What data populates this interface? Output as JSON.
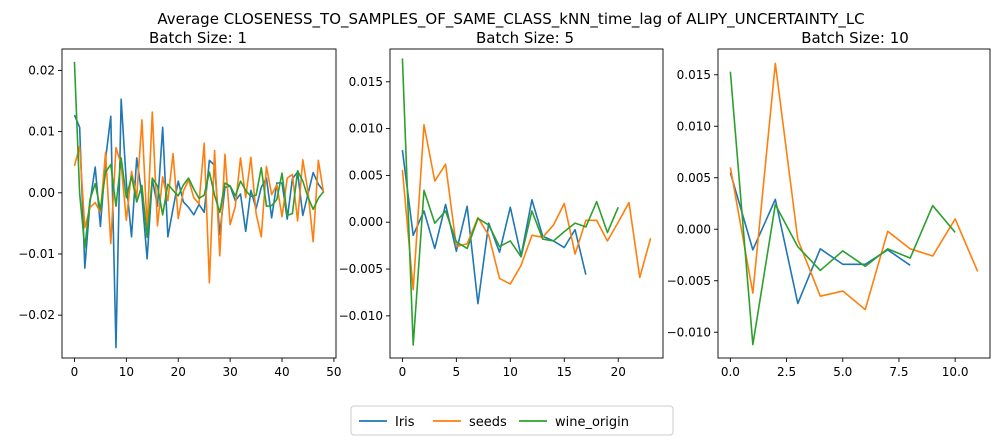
{
  "figure_title": "Average CLOSENESS_TO_SAMPLES_OF_SAME_CLASS_kNN_time_lag of ALIPY_UNCERTAINTY_LC",
  "legend": [
    {
      "name": "Iris",
      "color": "#1f77b4"
    },
    {
      "name": "seeds",
      "color": "#ff7f0e"
    },
    {
      "name": "wine_origin",
      "color": "#2ca02c"
    }
  ],
  "chart_data": [
    {
      "type": "line",
      "title": "Batch Size: 1",
      "xlabel": "",
      "ylabel": "",
      "xlim": [
        -2.4,
        50.4
      ],
      "ylim": [
        -0.027,
        0.0235
      ],
      "xticks": [
        0,
        10,
        20,
        30,
        40,
        50
      ],
      "xtick_labels": [
        "0",
        "10",
        "20",
        "30",
        "40",
        "50"
      ],
      "yticks": [
        -0.02,
        -0.01,
        0.0,
        0.01,
        0.02
      ],
      "ytick_labels": [
        "−0.02",
        "−0.01",
        "0.00",
        "0.01",
        "0.02"
      ],
      "series": [
        {
          "name": "Iris",
          "x": [
            0,
            1,
            2,
            3,
            4,
            5,
            6,
            7,
            8,
            9,
            10,
            11,
            12,
            13,
            14,
            15,
            16,
            17,
            18,
            19,
            20,
            21,
            22,
            23,
            24,
            25,
            26,
            27,
            28,
            29,
            30,
            31,
            32,
            33,
            34,
            35,
            36,
            37,
            38,
            39,
            40,
            41,
            42,
            43,
            44,
            45,
            46,
            47,
            48
          ],
          "y": [
            0.0127,
            0.0107,
            -0.0123,
            -0.0015,
            0.0042,
            -0.0055,
            0.0055,
            0.0125,
            -0.0253,
            0.0153,
            0.0016,
            -0.0072,
            0.0057,
            -0.0005,
            -0.0108,
            0.0022,
            -0.0022,
            0.0107,
            -0.0072,
            -0.0026,
            0.0019,
            -0.0015,
            -0.0024,
            -0.0036,
            -0.0019,
            -0.0032,
            0.0053,
            0.0045,
            -0.0068,
            0.0009,
            0.0011,
            -0.0013,
            -0.0002,
            -0.0063,
            0.0004,
            -0.0026,
            0.0009,
            0.0024,
            -0.0041,
            0.0016,
            0.0016,
            -0.0043,
            0.0023,
            0.0034,
            -0.0037,
            -0.0002,
            0.0033,
            0.0014,
            0.0003
          ]
        },
        {
          "name": "seeds",
          "x": [
            0,
            1,
            2,
            3,
            4,
            5,
            6,
            7,
            8,
            9,
            10,
            11,
            12,
            13,
            14,
            15,
            16,
            17,
            18,
            19,
            20,
            21,
            22,
            23,
            24,
            25,
            26,
            27,
            28,
            29,
            30,
            31,
            32,
            33,
            34,
            35,
            36,
            37,
            38,
            39,
            40,
            41,
            42,
            43,
            44,
            45,
            46,
            47,
            48
          ],
          "y": [
            0.0044,
            0.0076,
            -0.0057,
            -0.0024,
            -0.0016,
            -0.0032,
            0.0066,
            -0.0083,
            0.0074,
            0.0046,
            -0.0045,
            0.0035,
            -0.0007,
            0.0119,
            -0.0058,
            0.0132,
            -0.0054,
            0.0026,
            -0.0013,
            0.0064,
            -0.0042,
            0.0003,
            0.0021,
            -0.0008,
            -0.0018,
            0.0081,
            -0.0147,
            0.0069,
            -0.0103,
            0.0063,
            -0.0052,
            -0.0022,
            0.0057,
            -0.0008,
            0.0058,
            -0.0034,
            -0.0072,
            0.0043,
            -0.0003,
            0.0013,
            -0.0039,
            0.0024,
            0.003,
            -0.0046,
            0.0054,
            0.0002,
            -0.008,
            0.0053,
            0.0
          ]
        },
        {
          "name": "wine_origin",
          "x": [
            0,
            1,
            2,
            3,
            4,
            5,
            6,
            7,
            8,
            9,
            10,
            11,
            12,
            13,
            14,
            15,
            16,
            17,
            18,
            19,
            20,
            21,
            22,
            23,
            24,
            25,
            26,
            27,
            28,
            29,
            30,
            31,
            32,
            33,
            34,
            35,
            36,
            37,
            38,
            39,
            40,
            41,
            42,
            43,
            44,
            45,
            46,
            47,
            48
          ],
          "y": [
            0.0214,
            -0.0001,
            -0.009,
            -0.0011,
            0.0015,
            -0.0028,
            0.0034,
            0.0046,
            -0.0022,
            0.0057,
            -0.0008,
            0.0027,
            -0.0015,
            0.0012,
            -0.0073,
            0.0024,
            0.0011,
            -0.0036,
            0.0014,
            0.0004,
            -0.0005,
            0.0013,
            0.0024,
            0.0006,
            -0.0009,
            -0.0004,
            0.0034,
            -0.0004,
            -0.0032,
            0.0016,
            0.0011,
            -0.0005,
            0.0019,
            0.0004,
            -0.0006,
            -0.0004,
            0.0041,
            -0.0022,
            -0.0021,
            -0.0011,
            0.0032,
            -0.0037,
            -0.0034,
            0.0036,
            0.0019,
            -0.0007,
            -0.0027,
            -0.0009,
            0.0002
          ]
        }
      ]
    },
    {
      "type": "line",
      "title": "Batch Size: 5",
      "xlabel": "",
      "ylabel": "",
      "xlim": [
        -1.15,
        24.15
      ],
      "ylim": [
        -0.0145,
        0.0185
      ],
      "xticks": [
        0,
        5,
        10,
        15,
        20
      ],
      "xtick_labels": [
        "0",
        "5",
        "10",
        "15",
        "20"
      ],
      "yticks": [
        -0.01,
        -0.005,
        0.0,
        0.005,
        0.01,
        0.015
      ],
      "ytick_labels": [
        "−0.010",
        "−0.005",
        "0.000",
        "0.005",
        "0.010",
        "0.015"
      ],
      "series": [
        {
          "name": "Iris",
          "x": [
            0,
            1,
            2,
            3,
            4,
            5,
            6,
            7,
            8,
            9,
            10,
            11,
            12,
            13,
            14,
            15,
            16,
            17
          ],
          "y": [
            0.0077,
            -0.0014,
            0.0012,
            -0.0028,
            0.0019,
            -0.0031,
            0.0017,
            -0.0087,
            -0.0001,
            -0.0032,
            0.0016,
            -0.0036,
            0.0024,
            -0.0015,
            -0.002,
            -0.0027,
            -0.0008,
            -0.0056
          ]
        },
        {
          "name": "seeds",
          "x": [
            0,
            1,
            2,
            3,
            4,
            5,
            6,
            7,
            8,
            9,
            10,
            11,
            12,
            13,
            14,
            15,
            16,
            17,
            18,
            19,
            20,
            21,
            22,
            23
          ],
          "y": [
            0.0056,
            -0.0072,
            0.0104,
            0.0044,
            0.0062,
            -0.0026,
            -0.0023,
            0.0005,
            -0.0014,
            -0.006,
            -0.0066,
            -0.0046,
            -0.0014,
            -0.0016,
            -0.0003,
            0.002,
            -0.0034,
            0.0002,
            0.0002,
            -0.002,
            0.0,
            0.0021,
            -0.0059,
            -0.0017
          ]
        },
        {
          "name": "wine_origin",
          "x": [
            0,
            1,
            2,
            3,
            4,
            5,
            6,
            7,
            8,
            9,
            10,
            11,
            12,
            13,
            14,
            15,
            16,
            17,
            18,
            19,
            20
          ],
          "y": [
            0.0175,
            -0.0131,
            0.0034,
            -0.0001,
            0.0012,
            -0.0021,
            -0.0028,
            0.0004,
            -0.0003,
            -0.0026,
            -0.002,
            -0.0037,
            0.0012,
            -0.0018,
            -0.002,
            -0.001,
            -0.0001,
            -0.0005,
            0.0022,
            -0.0011,
            0.0016
          ]
        }
      ]
    },
    {
      "type": "line",
      "title": "Batch Size: 10",
      "xlabel": "",
      "ylabel": "",
      "xlim": [
        -0.55,
        11.55
      ],
      "ylim": [
        -0.0125,
        0.0175
      ],
      "xticks": [
        0,
        2.5,
        5,
        7.5,
        10
      ],
      "xtick_labels": [
        "0.0",
        "2.5",
        "5.0",
        "7.5",
        "10.0"
      ],
      "yticks": [
        -0.01,
        -0.005,
        0.0,
        0.005,
        0.01,
        0.015
      ],
      "ytick_labels": [
        "−0.010",
        "−0.005",
        "0.000",
        "0.005",
        "0.010",
        "0.015"
      ],
      "series": [
        {
          "name": "Iris",
          "x": [
            0,
            1,
            2,
            3,
            4,
            5,
            6,
            7,
            8
          ],
          "y": [
            0.0055,
            -0.002,
            0.0029,
            -0.0072,
            -0.0019,
            -0.0034,
            -0.0034,
            -0.002,
            -0.0035
          ]
        },
        {
          "name": "seeds",
          "x": [
            0,
            1,
            2,
            3,
            4,
            5,
            6,
            7,
            8,
            9,
            10,
            11
          ],
          "y": [
            0.006,
            -0.0062,
            0.0161,
            -0.001,
            -0.0065,
            -0.006,
            -0.0078,
            -0.0002,
            -0.0019,
            -0.0026,
            0.001,
            -0.0041
          ]
        },
        {
          "name": "wine_origin",
          "x": [
            0,
            1,
            2,
            3,
            4,
            5,
            6,
            7,
            8,
            9,
            10
          ],
          "y": [
            0.0153,
            -0.0112,
            0.0024,
            -0.0017,
            -0.004,
            -0.0021,
            -0.0036,
            -0.0019,
            -0.0028,
            0.0023,
            -0.0003
          ]
        }
      ]
    }
  ]
}
